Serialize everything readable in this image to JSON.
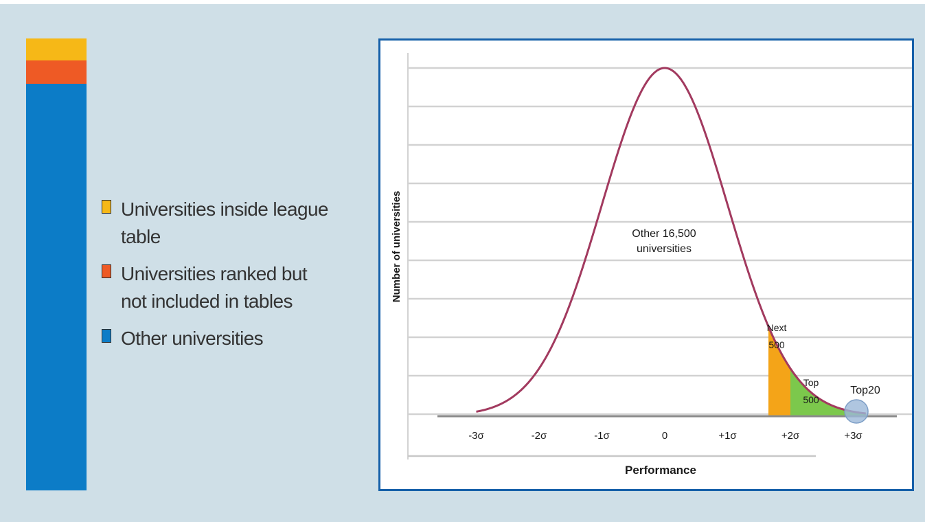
{
  "colors": {
    "background": "#cfdfe7",
    "panel_border": "#1660a9",
    "curve": "#a23a5f",
    "league_table": "#f6b817",
    "ranked_not_included": "#ee5a25",
    "other": "#0c7cc7",
    "next500_fill": "#f4a418",
    "top500_fill": "#7cc84c",
    "top20_fill": "#9bb8d8"
  },
  "legend": {
    "items": [
      {
        "label": "Universities inside league table",
        "color": "#f6b817"
      },
      {
        "label": "Universities ranked but\nnot included in tables",
        "color": "#ee5a25"
      },
      {
        "label": "Other universities",
        "color": "#0c7cc7"
      }
    ]
  },
  "chart_data": [
    {
      "type": "bar",
      "stacked": true,
      "orientation": "vertical",
      "series": [
        {
          "name": "Universities inside league table",
          "fraction": 0.048,
          "color": "#f6b817"
        },
        {
          "name": "Universities ranked but not included in tables",
          "fraction": 0.052,
          "color": "#ee5a25"
        },
        {
          "name": "Other universities",
          "fraction": 0.9,
          "color": "#0c7cc7"
        }
      ]
    },
    {
      "type": "area",
      "distribution": "normal",
      "xlabel": "Performance",
      "ylabel": "Number of universities",
      "x_ticks": [
        "-3σ",
        "-2σ",
        "-1σ",
        "0",
        "+1σ",
        "+2σ",
        "+3σ"
      ],
      "xlim": [
        -3,
        3.2
      ],
      "grid": true,
      "regions": [
        {
          "name": "Next 500",
          "label_line1": "Next",
          "label_line2": "500",
          "from": 1.65,
          "to": 2.0,
          "color": "#f4a418"
        },
        {
          "name": "Top 500",
          "label_line1": "Top",
          "label_line2": "500",
          "from": 2.0,
          "to": 3.2,
          "color": "#7cc84c"
        },
        {
          "name": "Top20",
          "label": "Top20",
          "at": 3.05,
          "color": "#9bb8d8"
        }
      ],
      "annotation": {
        "line1": "Other 16,500",
        "line2": "universities"
      }
    }
  ]
}
